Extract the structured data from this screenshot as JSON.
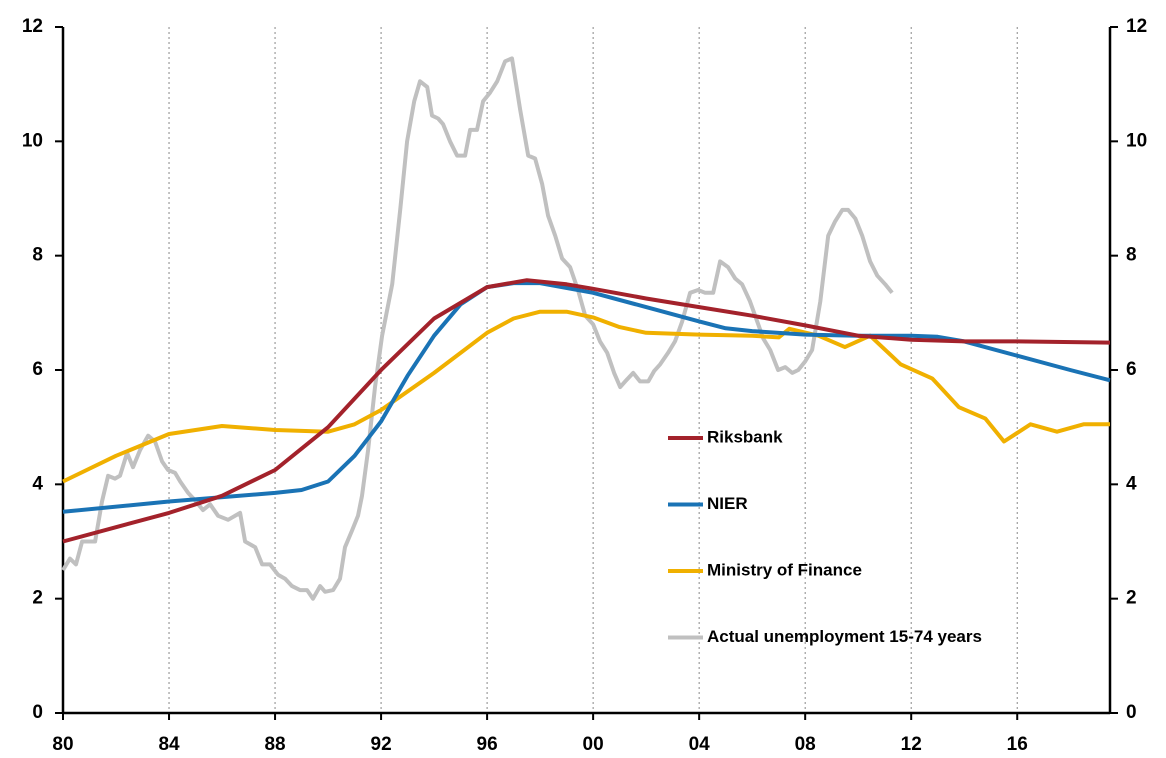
{
  "chart_data": {
    "type": "line",
    "xlim": [
      1980,
      2019.5
    ],
    "xticks": [
      {
        "value": 1980,
        "label": "80"
      },
      {
        "value": 1984,
        "label": "84"
      },
      {
        "value": 1988,
        "label": "88"
      },
      {
        "value": 1992,
        "label": "92"
      },
      {
        "value": 1996,
        "label": "96"
      },
      {
        "value": 2000,
        "label": "00"
      },
      {
        "value": 2004,
        "label": "04"
      },
      {
        "value": 2008,
        "label": "08"
      },
      {
        "value": 2012,
        "label": "12"
      },
      {
        "value": 2016,
        "label": "16"
      }
    ],
    "ylim": [
      0,
      12
    ],
    "yticks": [
      0,
      2,
      4,
      6,
      8,
      10,
      12
    ],
    "y2lim": [
      0,
      12
    ],
    "y2ticks": [
      0,
      2,
      4,
      6,
      8,
      10,
      12
    ],
    "grid": "x",
    "series": [
      {
        "name": "Riksbank",
        "color": "#a3222b",
        "x": [
          1980,
          1982,
          1984,
          1986,
          1988,
          1990,
          1992,
          1994,
          1996,
          1997.5,
          1999,
          2000,
          2002,
          2004,
          2006,
          2008,
          2010,
          2012,
          2014,
          2016,
          2019.5
        ],
        "values": [
          3.0,
          3.25,
          3.5,
          3.8,
          4.25,
          5.0,
          6.0,
          6.9,
          7.45,
          7.57,
          7.5,
          7.42,
          7.25,
          7.1,
          6.95,
          6.78,
          6.6,
          6.53,
          6.5,
          6.5,
          6.48
        ]
      },
      {
        "name": "NIER",
        "color": "#1a73b5",
        "x": [
          1980,
          1984,
          1988,
          1989,
          1990,
          1991,
          1992,
          1993,
          1994,
          1995,
          1996,
          1997,
          1998,
          2000,
          2002,
          2004,
          2005,
          2006,
          2008,
          2010,
          2012,
          2013,
          2014,
          2016,
          2018,
          2019.5
        ],
        "values": [
          3.52,
          3.7,
          3.85,
          3.9,
          4.05,
          4.5,
          5.1,
          5.9,
          6.6,
          7.15,
          7.45,
          7.52,
          7.52,
          7.35,
          7.1,
          6.85,
          6.73,
          6.68,
          6.62,
          6.6,
          6.6,
          6.58,
          6.5,
          6.25,
          6.0,
          5.82
        ]
      },
      {
        "name": "Ministry of Finance",
        "color": "#f0b000",
        "x": [
          1980,
          1982,
          1984,
          1986,
          1988,
          1990,
          1991,
          1992,
          1994,
          1996,
          1997,
          1998,
          1999,
          2000,
          2001,
          2002,
          2004,
          2006,
          2007,
          2007.4,
          2008.5,
          2009.5,
          2010.45,
          2011.6,
          2012.8,
          2013.8,
          2014.8,
          2015.5,
          2016.5,
          2017.5,
          2018.5,
          2019.5
        ],
        "values": [
          4.05,
          4.5,
          4.88,
          5.02,
          4.95,
          4.92,
          5.05,
          5.3,
          5.95,
          6.65,
          6.9,
          7.02,
          7.02,
          6.92,
          6.75,
          6.65,
          6.62,
          6.6,
          6.57,
          6.72,
          6.6,
          6.4,
          6.6,
          6.1,
          5.85,
          5.35,
          5.15,
          4.75,
          5.05,
          4.92,
          5.05,
          5.05
        ]
      },
      {
        "name": "Actual unemployment 15-74 years",
        "color": "#c0c0c0",
        "x": [
          1980.0,
          1980.26,
          1980.49,
          1980.72,
          1981.02,
          1981.21,
          1981.47,
          1981.7,
          1981.96,
          1982.15,
          1982.42,
          1982.64,
          1982.91,
          1983.21,
          1983.47,
          1983.74,
          1983.96,
          1984.23,
          1984.42,
          1984.72,
          1984.98,
          1985.28,
          1985.55,
          1985.85,
          1986.23,
          1986.68,
          1986.87,
          1987.25,
          1987.51,
          1987.81,
          1988.11,
          1988.38,
          1988.64,
          1988.94,
          1989.21,
          1989.43,
          1989.7,
          1989.89,
          1990.19,
          1990.45,
          1990.64,
          1990.91,
          1991.13,
          1991.28,
          1991.51,
          1991.77,
          1992.04,
          1992.42,
          1992.72,
          1992.98,
          1993.25,
          1993.47,
          1993.74,
          1993.92,
          1994.15,
          1994.34,
          1994.6,
          1994.87,
          1995.17,
          1995.36,
          1995.62,
          1995.85,
          1996.11,
          1996.38,
          1996.68,
          1996.94,
          1997.25,
          1997.55,
          1997.81,
          1998.08,
          1998.3,
          1998.57,
          1998.83,
          1999.13,
          1999.43,
          1999.7,
          2000.0,
          2000.26,
          2000.53,
          2000.79,
          2001.02,
          2001.21,
          2001.51,
          2001.77,
          2002.08,
          2002.3,
          2002.53,
          2002.83,
          2003.09,
          2003.36,
          2003.66,
          2003.96,
          2004.23,
          2004.53,
          2004.79,
          2005.09,
          2005.36,
          2005.62,
          2005.92,
          2006.19,
          2006.42,
          2006.68,
          2006.98,
          2007.25,
          2007.51,
          2007.74,
          2008.0,
          2008.26,
          2008.57,
          2008.87,
          2009.13,
          2009.4,
          2009.62,
          2009.89,
          2010.15,
          2010.45,
          2010.72,
          2011.02,
          2011.28
        ],
        "values": [
          2.5,
          2.7,
          2.6,
          3.0,
          3.0,
          3.0,
          3.7,
          4.15,
          4.1,
          4.15,
          4.55,
          4.3,
          4.6,
          4.85,
          4.75,
          4.4,
          4.25,
          4.2,
          4.05,
          3.85,
          3.72,
          3.55,
          3.65,
          3.45,
          3.38,
          3.5,
          3.0,
          2.9,
          2.6,
          2.6,
          2.42,
          2.35,
          2.22,
          2.15,
          2.15,
          2.0,
          2.22,
          2.12,
          2.15,
          2.35,
          2.9,
          3.2,
          3.45,
          3.8,
          4.6,
          5.7,
          6.6,
          7.5,
          8.8,
          10.0,
          10.7,
          11.05,
          10.95,
          10.45,
          10.4,
          10.3,
          10.0,
          9.75,
          9.75,
          10.2,
          10.2,
          10.7,
          10.85,
          11.05,
          11.4,
          11.45,
          10.55,
          9.75,
          9.7,
          9.25,
          8.7,
          8.35,
          7.95,
          7.8,
          7.4,
          6.95,
          6.8,
          6.5,
          6.3,
          5.95,
          5.7,
          5.8,
          5.95,
          5.8,
          5.8,
          5.98,
          6.1,
          6.3,
          6.5,
          6.85,
          7.35,
          7.4,
          7.35,
          7.35,
          7.9,
          7.8,
          7.6,
          7.5,
          7.2,
          6.85,
          6.55,
          6.35,
          6.0,
          6.05,
          5.95,
          6.0,
          6.15,
          6.35,
          7.2,
          8.35,
          8.6,
          8.8,
          8.8,
          8.65,
          8.35,
          7.9,
          7.65,
          7.5,
          7.35
        ]
      }
    ]
  }
}
